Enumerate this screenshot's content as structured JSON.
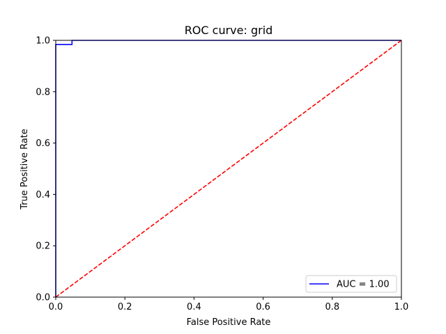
{
  "chart_data": {
    "type": "line",
    "title": "ROC curve: grid",
    "xlabel": "False Positive Rate",
    "ylabel": "True Positive Rate",
    "xlim": [
      0.0,
      1.0
    ],
    "ylim": [
      0.0,
      1.0
    ],
    "xticks": [
      "0.0",
      "0.2",
      "0.4",
      "0.6",
      "0.8",
      "1.0"
    ],
    "yticks": [
      "0.0",
      "0.2",
      "0.4",
      "0.6",
      "0.8",
      "1.0"
    ],
    "grid": false,
    "legend": {
      "position": "lower-right",
      "entries": [
        "AUC = 1.00"
      ]
    },
    "series": [
      {
        "name": "AUC = 1.00",
        "color": "#0000ff",
        "style": "solid",
        "x": [
          0.0,
          0.0,
          0.0,
          0.047,
          0.047,
          1.0
        ],
        "y": [
          0.0,
          0.984,
          0.984,
          0.984,
          1.0,
          1.0
        ]
      },
      {
        "color": "#ff0000",
        "style": "dashed",
        "x": [
          0.0,
          1.0
        ],
        "y": [
          0.0,
          1.0
        ]
      }
    ]
  }
}
